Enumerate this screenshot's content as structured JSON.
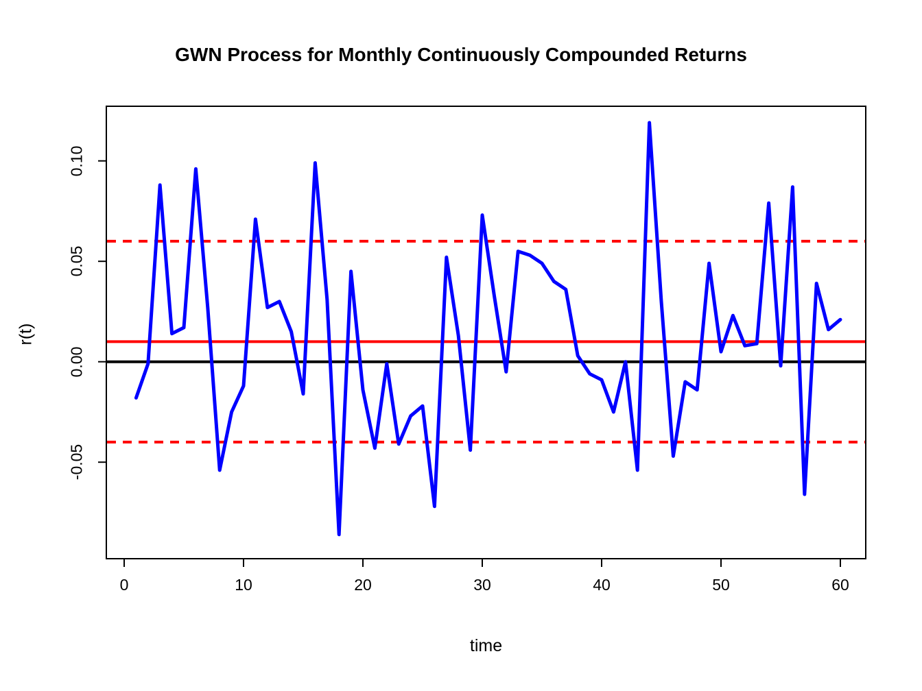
{
  "chart_data": {
    "type": "line",
    "title": "GWN Process for Monthly Continuously Compounded Returns",
    "xlabel": "time",
    "ylabel": "r(t)",
    "x_ticks": [
      0,
      10,
      20,
      30,
      40,
      50,
      60
    ],
    "y_ticks": [
      "0.10",
      "0.05",
      "0.00",
      "-0.05"
    ],
    "y_tick_values": [
      0.1,
      0.05,
      0.0,
      -0.05
    ],
    "xlim": [
      -1.5,
      62.1
    ],
    "ylim": [
      -0.098,
      0.127
    ],
    "grid": false,
    "legend": "none",
    "x": [
      1,
      2,
      3,
      4,
      5,
      6,
      7,
      8,
      9,
      10,
      11,
      12,
      13,
      14,
      15,
      16,
      17,
      18,
      19,
      20,
      21,
      22,
      23,
      24,
      25,
      26,
      27,
      28,
      29,
      30,
      31,
      32,
      33,
      34,
      35,
      36,
      37,
      38,
      39,
      40,
      41,
      42,
      43,
      44,
      45,
      46,
      47,
      48,
      49,
      50,
      51,
      52,
      53,
      54,
      55,
      56,
      57,
      58,
      59,
      60
    ],
    "series": [
      {
        "name": "simulated-returns",
        "color": "#0000ff",
        "values": [
          -0.018,
          -0.001,
          0.088,
          0.014,
          0.017,
          0.096,
          0.027,
          -0.054,
          -0.025,
          -0.012,
          0.071,
          0.027,
          0.03,
          0.015,
          -0.016,
          0.099,
          0.031,
          -0.086,
          0.045,
          -0.014,
          -0.043,
          -0.001,
          -0.041,
          -0.027,
          -0.022,
          -0.072,
          0.052,
          0.013,
          -0.044,
          0.073,
          0.033,
          -0.005,
          0.055,
          0.053,
          0.049,
          0.04,
          0.036,
          0.003,
          -0.006,
          -0.009,
          -0.025,
          0.0,
          -0.054,
          0.119,
          0.03,
          -0.047,
          -0.01,
          -0.014,
          0.049,
          0.005,
          0.023,
          0.008,
          0.009,
          0.079,
          -0.002,
          0.087,
          -0.066,
          0.039,
          0.016,
          0.021
        ]
      }
    ],
    "reference_lines": [
      {
        "name": "zero-line",
        "value": 0.0,
        "color": "#000000",
        "style": "solid"
      },
      {
        "name": "mean-line",
        "value": 0.01,
        "color": "#ff0000",
        "style": "solid"
      },
      {
        "name": "upper-sd-line",
        "value": 0.06,
        "color": "#ff0000",
        "style": "dashed"
      },
      {
        "name": "lower-sd-line",
        "value": -0.04,
        "color": "#ff0000",
        "style": "dashed"
      }
    ]
  },
  "labels": {
    "title": "GWN Process for Monthly Continuously Compounded Returns",
    "xlabel": "time",
    "ylabel": "r(t)"
  },
  "colors": {
    "series": "#0000ff",
    "reference": "#ff0000",
    "axis": "#000000",
    "background": "#ffffff"
  }
}
